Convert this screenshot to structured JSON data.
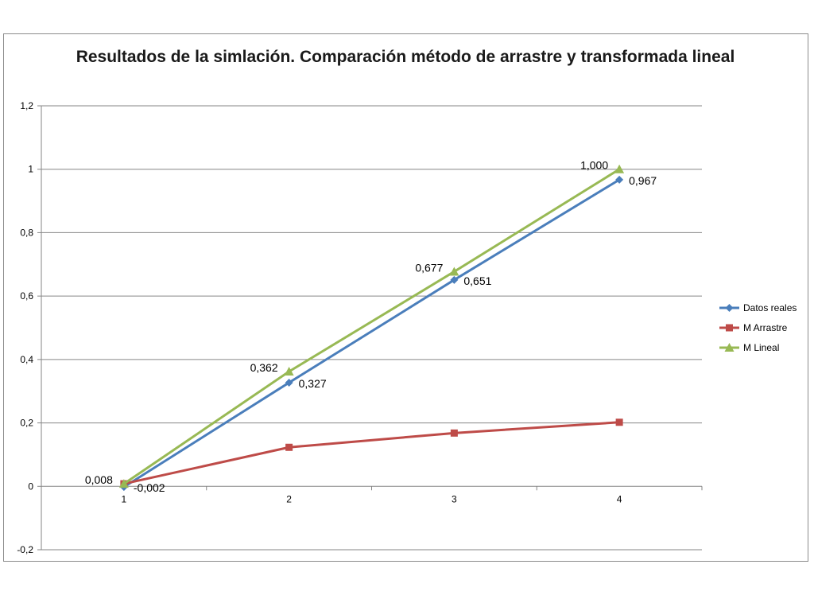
{
  "chart_data": {
    "type": "line",
    "title": "Resultados de la simlación. Comparación método de arrastre y transformada lineal",
    "x": [
      1,
      2,
      3,
      4
    ],
    "x_tick_labels": [
      "1",
      "2",
      "3",
      "4"
    ],
    "ylim": [
      -0.2,
      1.2
    ],
    "y_ticks": [
      -0.2,
      0,
      0.2,
      0.4,
      0.6,
      0.8,
      1,
      1.2
    ],
    "y_tick_labels": [
      "-0,2",
      "0",
      "0,2",
      "0,4",
      "0,6",
      "0,8",
      "1",
      "1,2"
    ],
    "grid": "horizontal",
    "legend": "right",
    "series": [
      {
        "name": "Datos reales",
        "color": "#4a7ebb",
        "marker": "diamond",
        "values": [
          -0.002,
          0.327,
          0.651,
          0.967
        ],
        "data_labels": [
          "-0,002",
          "0,327",
          "0,651",
          "0,967"
        ]
      },
      {
        "name": "M Arrastre",
        "color": "#be4b48",
        "marker": "square",
        "values": [
          0.008,
          0.123,
          0.168,
          0.202
        ],
        "data_labels": []
      },
      {
        "name": "M Lineal",
        "color": "#98b954",
        "marker": "triangle",
        "values": [
          0.008,
          0.362,
          0.677,
          1.0
        ],
        "data_labels": [
          "0,008",
          "0,362",
          "0,677",
          "1,000"
        ]
      }
    ]
  }
}
